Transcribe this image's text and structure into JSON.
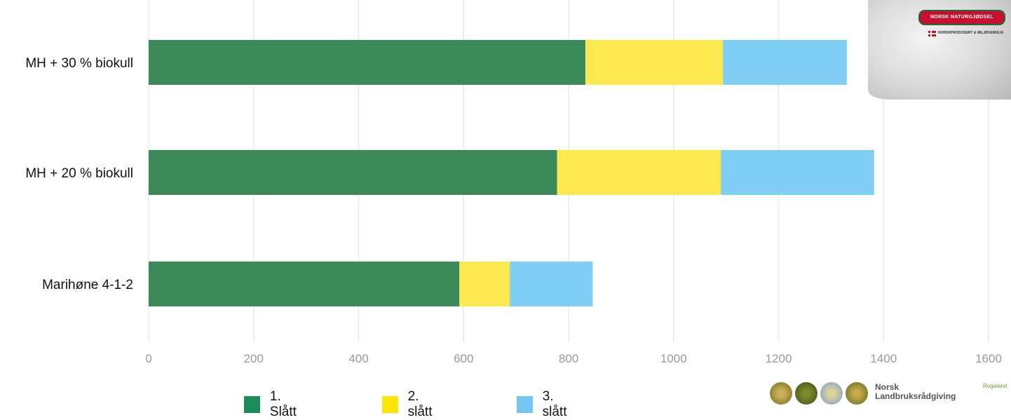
{
  "chart_data": {
    "type": "bar",
    "orientation": "horizontal",
    "stacked": true,
    "categories": [
      "MH + 30 % biokull",
      "MH + 20 % biokull",
      "Marihøne 4-1-2"
    ],
    "series": [
      {
        "name": "1. Slått",
        "values": [
          832,
          778,
          592
        ],
        "color": "#3c8a5a"
      },
      {
        "name": "2. slått",
        "values": [
          262,
          312,
          96
        ],
        "color": "#fce94f"
      },
      {
        "name": "3. slått",
        "values": [
          236,
          292,
          158
        ],
        "color": "#7ecff3"
      }
    ],
    "xlim": [
      0,
      1600
    ],
    "xticks": [
      0,
      200,
      400,
      600,
      800,
      1000,
      1200,
      1400,
      1600
    ],
    "grid": true,
    "legend_position": "bottom",
    "legend_swatch_colors": [
      "#1a8c5a",
      "#ffe600",
      "#74c6f4"
    ],
    "title": "",
    "xlabel": "",
    "ylabel": ""
  },
  "product_image": {
    "label": "NORSK NATURGJØDSEL",
    "subtext": "NORSKPRODUSERT & MILJØVENNLIG"
  },
  "logo": {
    "name": "Norsk Landbruksrådgiving",
    "name_line1": "Norsk",
    "name_line2": "Landbruksrådgiving",
    "region": "Rogaland"
  }
}
